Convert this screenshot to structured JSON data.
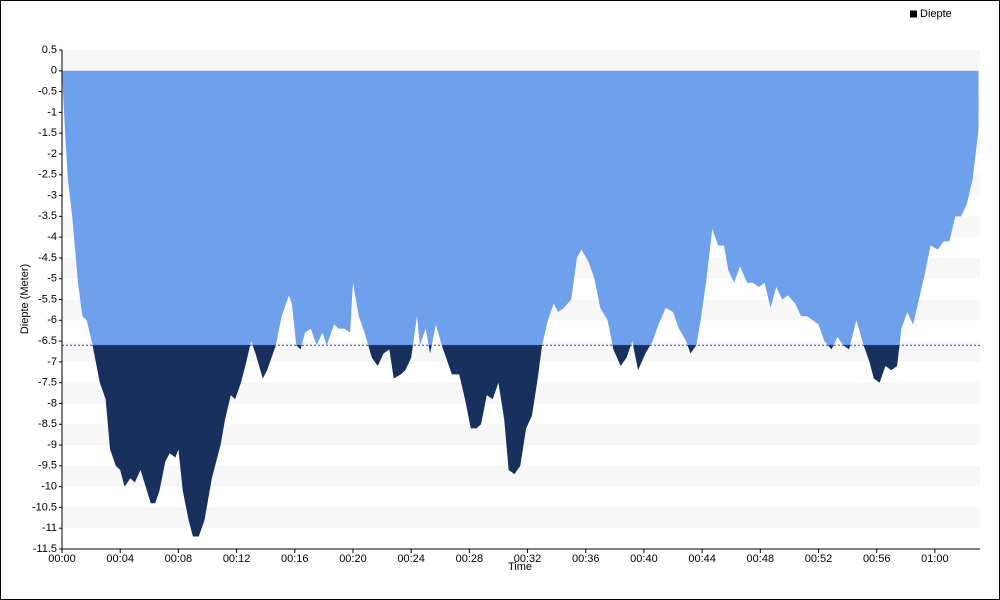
{
  "chart_data": {
    "type": "area",
    "x_label": "Time",
    "y_label": "Diepte (Meter)",
    "xlim": [
      0,
      63.1
    ],
    "xticks": [
      {
        "value": 0,
        "label": "00:00"
      },
      {
        "value": 4,
        "label": "00:04"
      },
      {
        "value": 8,
        "label": "00:08"
      },
      {
        "value": 12,
        "label": "00:12"
      },
      {
        "value": 16,
        "label": "00:16"
      },
      {
        "value": 20,
        "label": "00:20"
      },
      {
        "value": 24,
        "label": "00:24"
      },
      {
        "value": 28,
        "label": "00:28"
      },
      {
        "value": 32,
        "label": "00:32"
      },
      {
        "value": 36,
        "label": "00:36"
      },
      {
        "value": 40,
        "label": "00:40"
      },
      {
        "value": 44,
        "label": "00:44"
      },
      {
        "value": 48,
        "label": "00:48"
      },
      {
        "value": 52,
        "label": "00:52"
      },
      {
        "value": 56,
        "label": "00:56"
      },
      {
        "value": 60,
        "label": "01:00"
      }
    ],
    "ylim": [
      -11.5,
      0.5
    ],
    "yticks": [
      0.5,
      0,
      -0.5,
      -1,
      -1.5,
      -2,
      -2.5,
      -3,
      -3.5,
      -4,
      -4.5,
      -5,
      -5.5,
      -6,
      -6.5,
      -7,
      -7.5,
      -8,
      -8.5,
      -9,
      -9.5,
      -10,
      -10.5,
      -11,
      -11.5
    ],
    "grid": "bands",
    "threshold": -6.6,
    "threshold_color": "#3b3be6",
    "below_color": "#17305e",
    "legend": "top-right",
    "x": [
      0,
      0.2,
      0.4,
      0.7,
      1.1,
      1.4,
      1.7,
      2.1,
      2.6,
      3.0,
      3.3,
      3.7,
      4.0,
      4.3,
      4.7,
      5.0,
      5.4,
      6.1,
      6.4,
      6.7,
      7.1,
      7.4,
      7.8,
      8.0,
      8.3,
      8.7,
      9.0,
      9.4,
      9.8,
      10.3,
      10.9,
      11.2,
      11.6,
      11.9,
      12.3,
      12.6,
      13.0,
      13.3,
      13.8,
      14.1,
      14.7,
      15.1,
      15.6,
      15.8,
      16.1,
      16.4,
      16.7,
      17.1,
      17.5,
      17.9,
      18.2,
      18.7,
      19.0,
      19.4,
      19.8,
      20.0,
      20.4,
      20.8,
      21.3,
      21.7,
      22.1,
      22.5,
      22.8,
      23.3,
      23.6,
      24.0,
      24.4,
      24.6,
      25.0,
      25.3,
      25.7,
      26.1,
      26.5,
      26.8,
      27.3,
      27.7,
      28.1,
      28.5,
      28.8,
      29.2,
      29.6,
      30.0,
      30.4,
      30.7,
      31.1,
      31.5,
      31.9,
      32.3,
      32.7,
      33.0,
      33.4,
      33.8,
      34.1,
      34.5,
      35.0,
      35.4,
      35.7,
      36.2,
      36.6,
      37.0,
      37.5,
      37.9,
      38.4,
      38.8,
      39.2,
      39.6,
      40.1,
      40.6,
      41.0,
      41.5,
      42.0,
      42.4,
      42.9,
      43.2,
      43.6,
      43.9,
      44.3,
      44.7,
      45.1,
      45.5,
      45.8,
      46.2,
      46.6,
      47.1,
      47.5,
      47.9,
      48.3,
      48.7,
      49.1,
      49.5,
      49.9,
      50.4,
      50.8,
      51.2,
      51.6,
      52.0,
      52.4,
      52.9,
      53.3,
      53.7,
      54.1,
      54.6,
      55.1,
      55.5,
      55.8,
      56.2,
      56.6,
      57.0,
      57.4,
      57.7,
      58.1,
      58.5,
      58.9,
      59.3,
      59.7,
      60.2,
      60.6,
      61.0,
      61.4,
      61.8,
      62.2,
      62.6,
      63.0
    ],
    "series": [
      {
        "name": "Diepte",
        "color": "#6fa0ec",
        "values": [
          0,
          -1.4,
          -2.6,
          -3.5,
          -5.1,
          -5.9,
          -6.0,
          -6.6,
          -7.5,
          -7.9,
          -9.1,
          -9.5,
          -9.6,
          -10.0,
          -9.8,
          -9.9,
          -9.6,
          -10.4,
          -10.4,
          -10.1,
          -9.4,
          -9.2,
          -9.3,
          -9.1,
          -10.1,
          -10.8,
          -11.2,
          -11.2,
          -10.8,
          -9.8,
          -9.0,
          -8.4,
          -7.8,
          -7.9,
          -7.5,
          -7.1,
          -6.5,
          -6.8,
          -7.4,
          -7.2,
          -6.6,
          -5.9,
          -5.4,
          -5.6,
          -6.6,
          -6.7,
          -6.3,
          -6.2,
          -6.6,
          -6.3,
          -6.6,
          -6.1,
          -6.2,
          -6.2,
          -6.3,
          -5.1,
          -5.9,
          -6.3,
          -6.9,
          -7.1,
          -6.8,
          -6.7,
          -7.4,
          -7.3,
          -7.2,
          -6.9,
          -5.9,
          -6.6,
          -6.2,
          -6.8,
          -6.1,
          -6.6,
          -7.0,
          -7.3,
          -7.3,
          -7.9,
          -8.6,
          -8.6,
          -8.5,
          -7.8,
          -7.9,
          -7.5,
          -8.4,
          -9.6,
          -9.7,
          -9.5,
          -8.6,
          -8.3,
          -7.4,
          -6.6,
          -6.0,
          -5.6,
          -5.8,
          -5.7,
          -5.5,
          -4.5,
          -4.3,
          -4.6,
          -5.0,
          -5.7,
          -6.0,
          -6.7,
          -7.1,
          -6.9,
          -6.5,
          -7.2,
          -6.8,
          -6.5,
          -6.1,
          -5.7,
          -5.8,
          -6.2,
          -6.5,
          -6.8,
          -6.6,
          -6.0,
          -5.0,
          -3.8,
          -4.2,
          -4.2,
          -4.8,
          -5.1,
          -4.7,
          -5.1,
          -5.1,
          -5.2,
          -5.1,
          -5.7,
          -5.2,
          -5.5,
          -5.4,
          -5.6,
          -5.9,
          -5.9,
          -6.0,
          -6.1,
          -6.5,
          -6.7,
          -6.4,
          -6.6,
          -6.7,
          -6.0,
          -6.6,
          -7.0,
          -7.4,
          -7.5,
          -7.1,
          -7.2,
          -7.1,
          -6.2,
          -5.8,
          -6.1,
          -5.5,
          -4.9,
          -4.2,
          -4.3,
          -4.1,
          -4.1,
          -3.5,
          -3.5,
          -3.2,
          -2.6,
          -1.4
        ]
      }
    ]
  }
}
